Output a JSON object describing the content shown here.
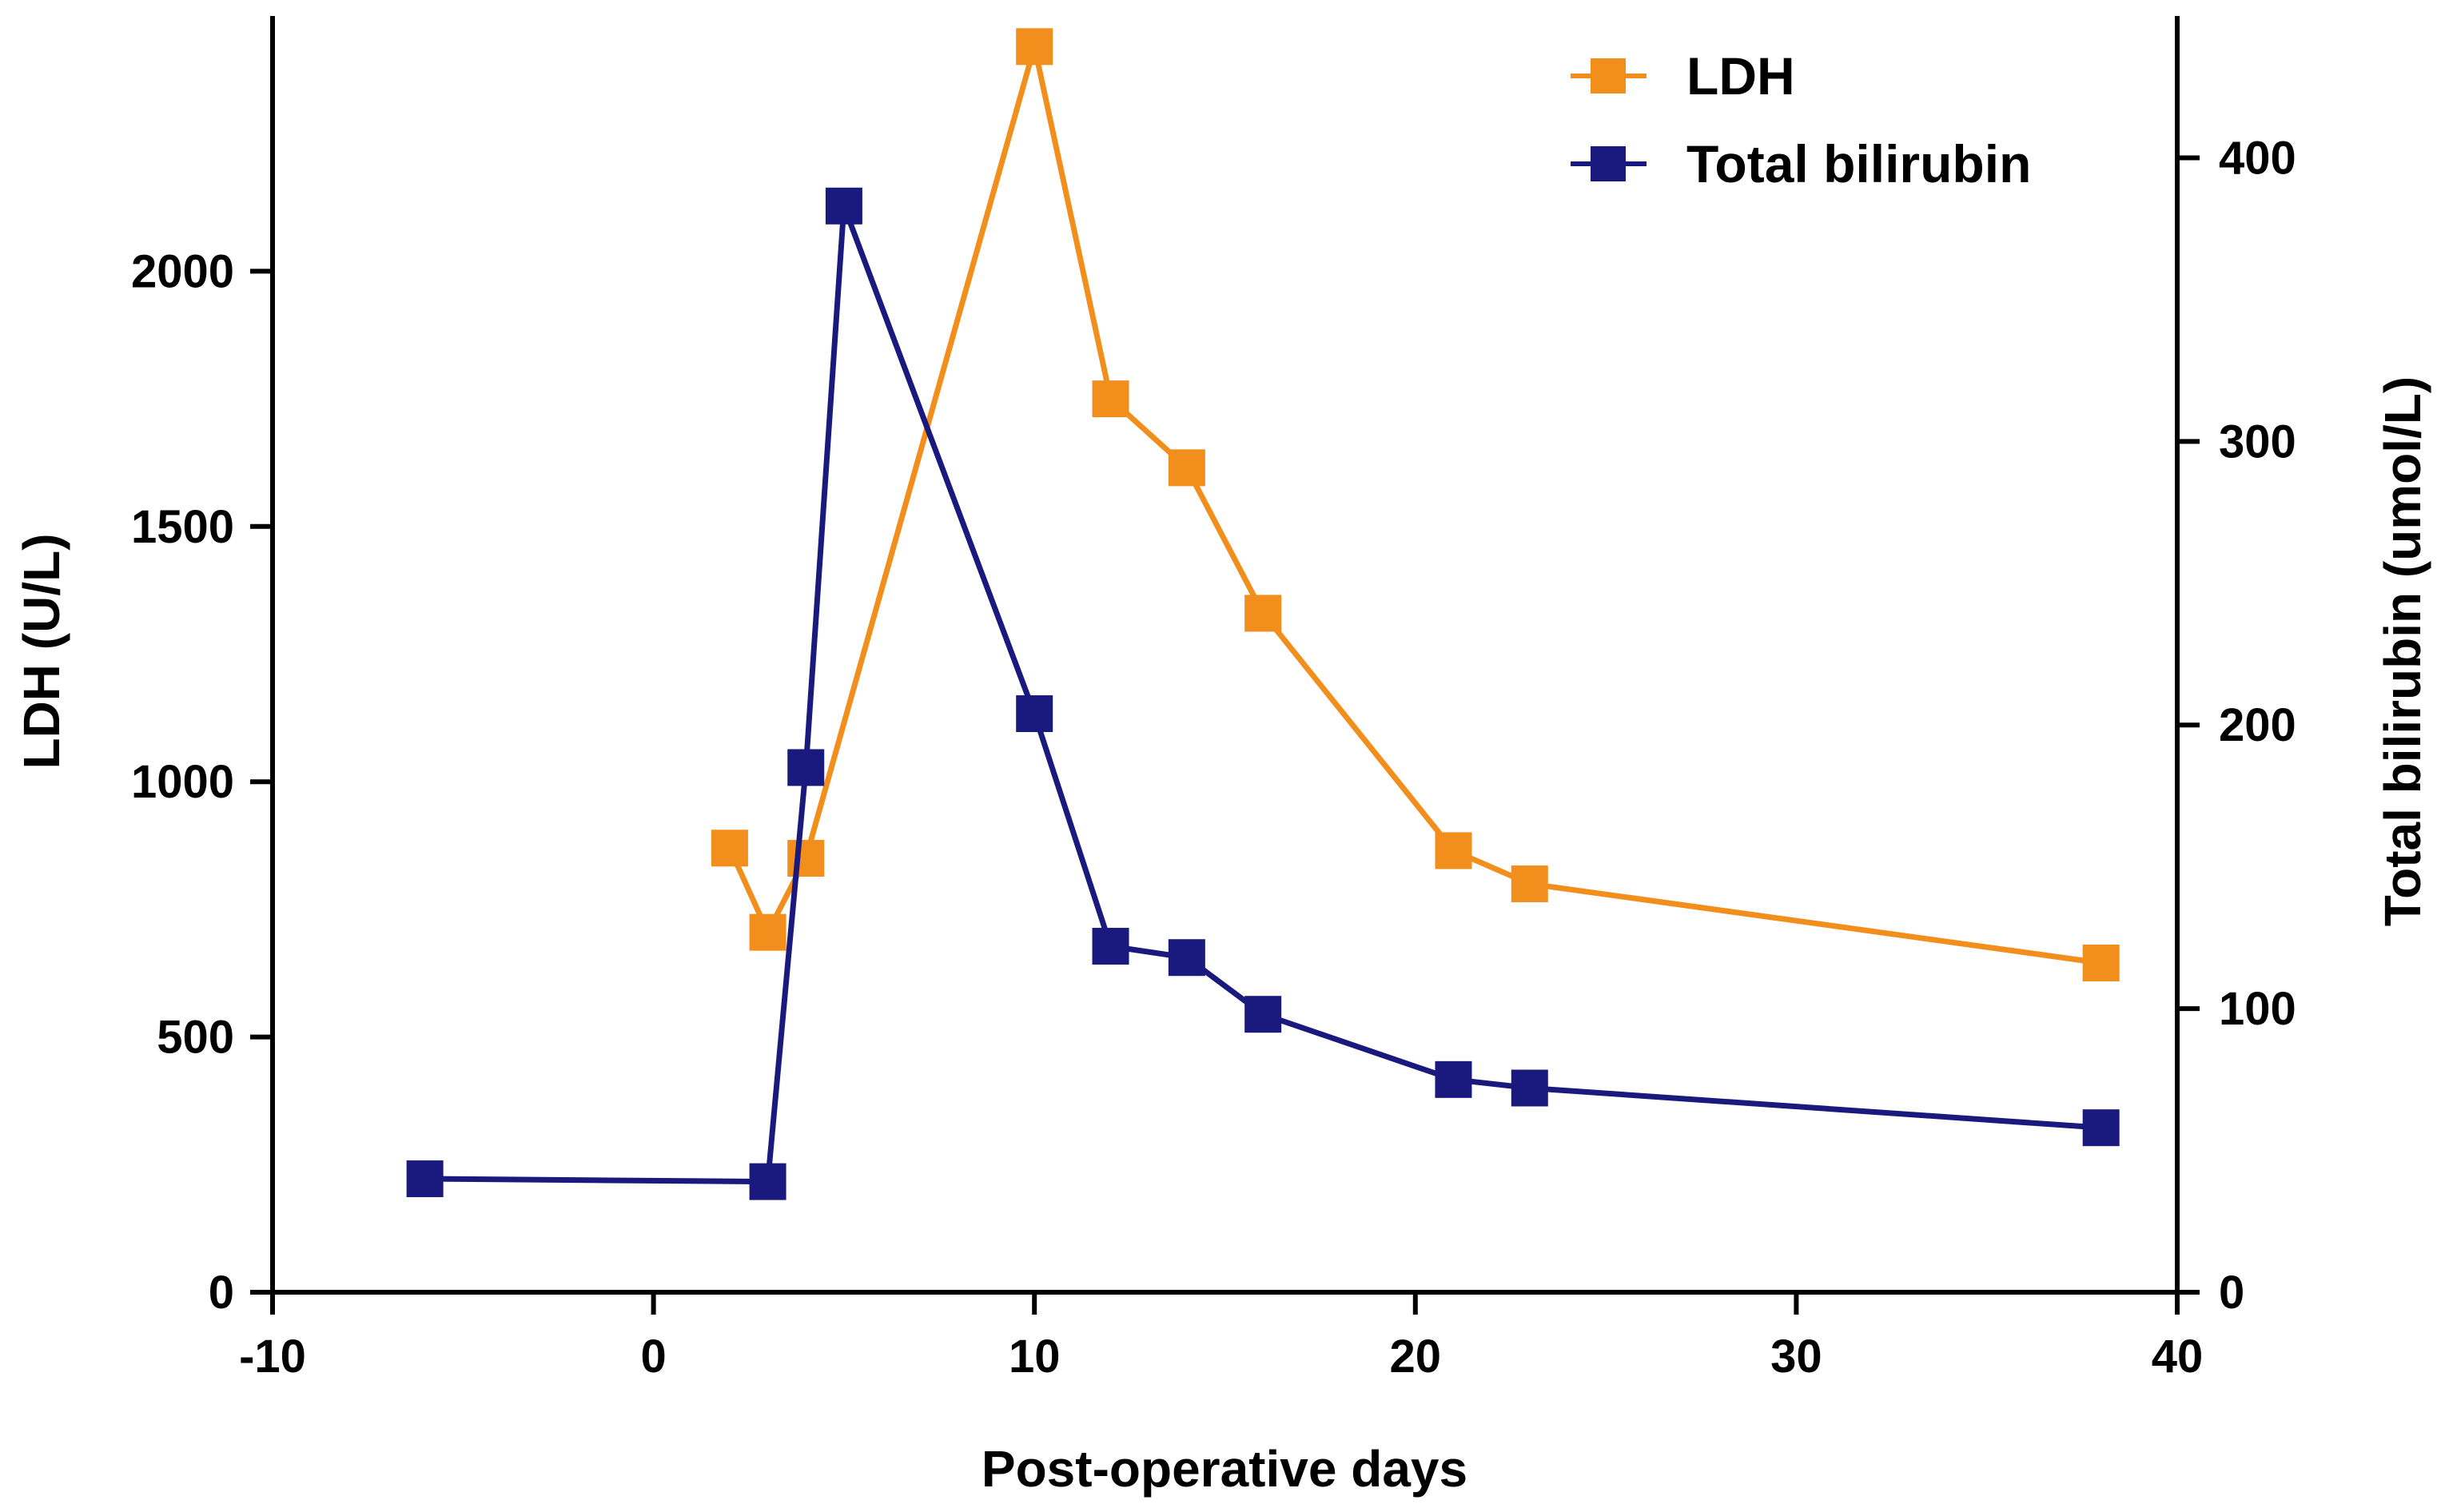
{
  "chart_data": {
    "type": "line",
    "title": "",
    "xlabel": "Post-operative days",
    "ylabel_left": "LDH (U/L)",
    "ylabel_right": "Total bilirubin (umol/L)",
    "xlim": [
      -10,
      40
    ],
    "ylim_left": [
      0,
      2500
    ],
    "ylim_right": [
      0,
      450
    ],
    "x_ticks": [
      -10,
      0,
      10,
      20,
      30,
      40
    ],
    "y_left_ticks": [
      0,
      500,
      1000,
      1500,
      2000
    ],
    "y_right_ticks": [
      0,
      100,
      200,
      300,
      400
    ],
    "grid": false,
    "legend_position": "top-right",
    "series": [
      {
        "name": "LDH",
        "axis": "left",
        "color": "#F28E1C",
        "x": [
          2,
          3,
          4,
          10,
          12,
          14,
          16,
          21,
          23,
          38
        ],
        "y": [
          870,
          705,
          850,
          2440,
          1750,
          1615,
          1330,
          865,
          800,
          645
        ]
      },
      {
        "name": "Total bilirubin",
        "axis": "right",
        "color": "#1A1A7E",
        "x": [
          -6,
          3,
          4,
          5,
          10,
          12,
          14,
          16,
          21,
          23,
          38
        ],
        "y": [
          40,
          39,
          185,
          383,
          204,
          122,
          118,
          98,
          75,
          72,
          58
        ]
      }
    ]
  }
}
